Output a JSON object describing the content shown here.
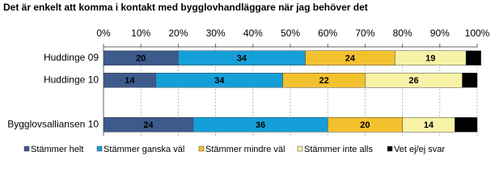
{
  "chart_data": {
    "type": "stacked-barh",
    "title": "Det är enkelt att komma i kontakt med bygglovhandläggare när jag behöver det",
    "categories": [
      "Huddinge 09",
      "Huddinge 10",
      null,
      "Bygglovsalliansen 10"
    ],
    "series": [
      {
        "name": "Stämmer helt",
        "color": "#3d5a8c",
        "values": [
          20,
          14,
          null,
          24
        ]
      },
      {
        "name": "Stämmer ganska väl",
        "color": "#159fd9",
        "values": [
          34,
          34,
          null,
          36
        ]
      },
      {
        "name": "Stämmer mindre väl",
        "color": "#f4c12e",
        "values": [
          24,
          22,
          null,
          20
        ]
      },
      {
        "name": "Stämmer inte alls",
        "color": "#f8f2a6",
        "values": [
          19,
          26,
          null,
          14
        ]
      },
      {
        "name": "Vet ej/ej svar",
        "color": "#000000",
        "values": [
          4,
          4,
          null,
          6
        ]
      }
    ],
    "xlim": [
      0,
      100
    ],
    "xticks": [
      {
        "value": 0,
        "label": "0%"
      },
      {
        "value": 10,
        "label": "10%"
      },
      {
        "value": 20,
        "label": "20%"
      },
      {
        "value": 30,
        "label": "30%"
      },
      {
        "value": 40,
        "label": "40%"
      },
      {
        "value": 50,
        "label": "50%"
      },
      {
        "value": 60,
        "label": "60%"
      },
      {
        "value": 70,
        "label": "70%"
      },
      {
        "value": 80,
        "label": "80%"
      },
      {
        "value": 90,
        "label": "90%"
      },
      {
        "value": 100,
        "label": "100%"
      }
    ],
    "grid": true,
    "legend": "bottom"
  }
}
